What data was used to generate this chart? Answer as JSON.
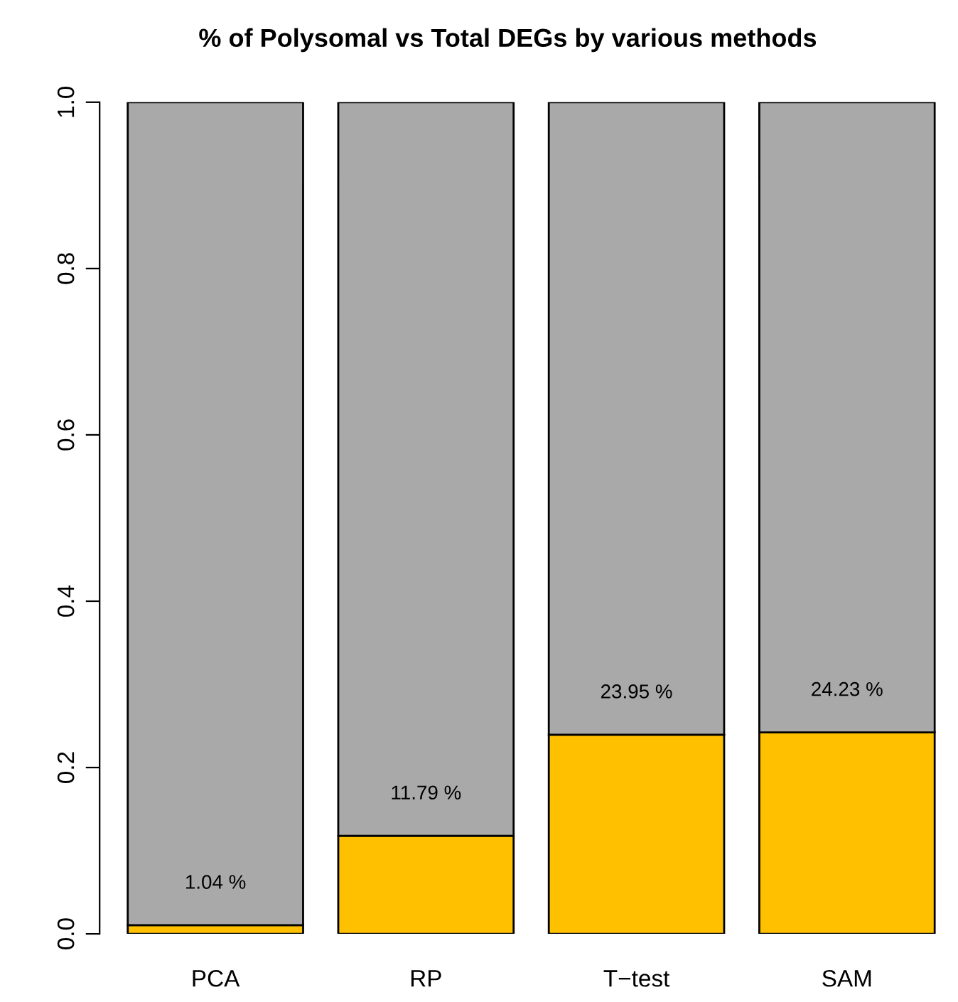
{
  "chart_data": {
    "type": "bar",
    "title": "% of Polysomal vs Total DEGs by various methods",
    "categories": [
      "PCA",
      "RP",
      "T−test",
      "SAM"
    ],
    "stacked": true,
    "series": [
      {
        "color": "#ffc000",
        "values": [
          0.0104,
          0.1179,
          0.2395,
          0.2423
        ],
        "value_labels": [
          "1.04 %",
          "11.79 %",
          "23.95 %",
          "24.23 %"
        ]
      },
      {
        "color": "#a9a9a9",
        "values": [
          0.9896,
          0.8821,
          0.7605,
          0.7577
        ]
      }
    ],
    "ylim": [
      0,
      1
    ],
    "yticks": [
      "0.0",
      "0.2",
      "0.4",
      "0.6",
      "0.8",
      "1.0"
    ],
    "grid": false
  }
}
